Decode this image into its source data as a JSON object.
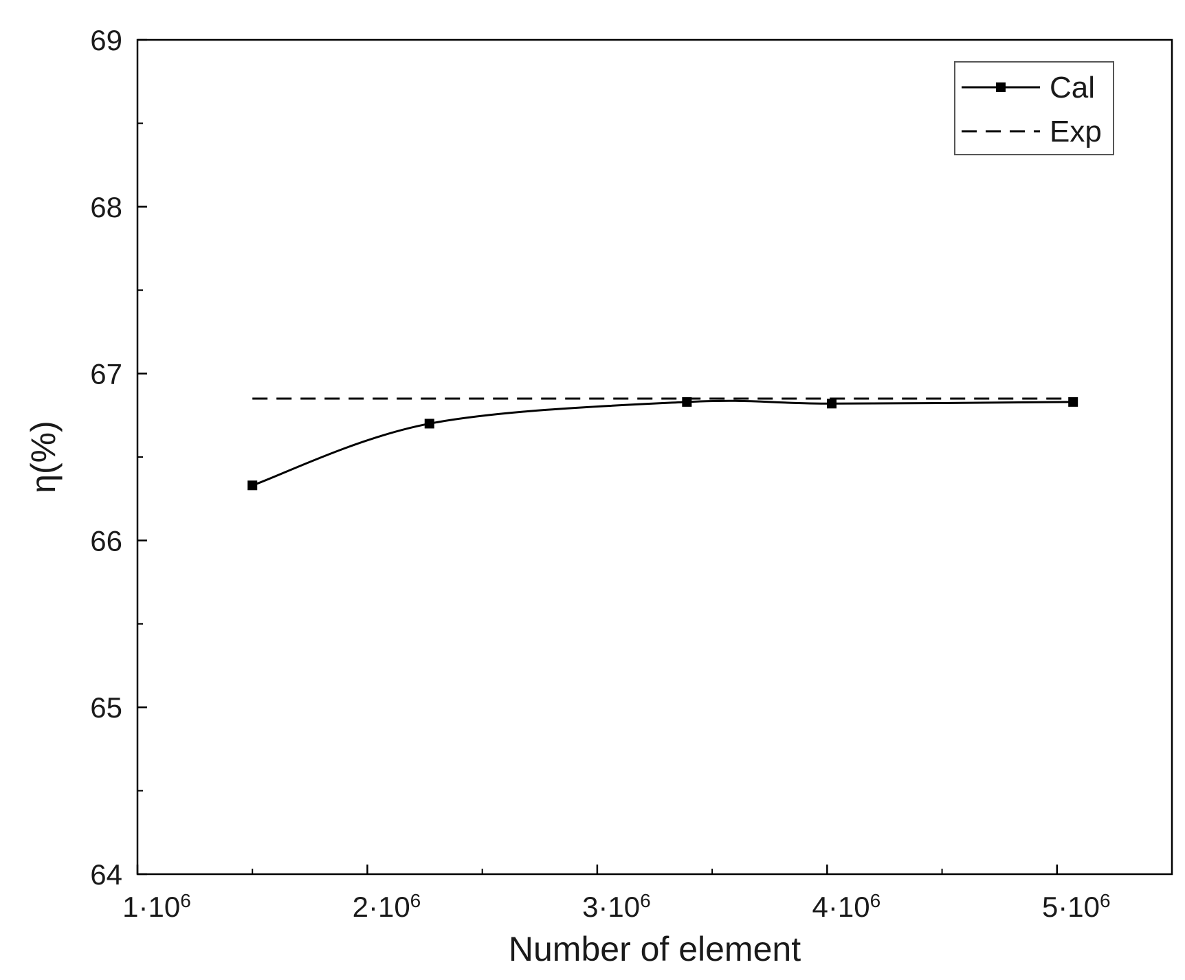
{
  "chart_data": {
    "type": "line",
    "title": "",
    "xlabel": "Number of element",
    "ylabel": "η(%)",
    "xlim": [
      1000000,
      5500000
    ],
    "ylim": [
      64,
      69
    ],
    "x_ticks": [
      {
        "value": 1000000,
        "base": "1·10",
        "exp": "6"
      },
      {
        "value": 2000000,
        "base": "2·10",
        "exp": "6"
      },
      {
        "value": 3000000,
        "base": "3·10",
        "exp": "6"
      },
      {
        "value": 4000000,
        "base": "4·10",
        "exp": "6"
      },
      {
        "value": 5000000,
        "base": "5·10",
        "exp": "6"
      }
    ],
    "y_ticks": [
      "64",
      "65",
      "66",
      "67",
      "68",
      "69"
    ],
    "grid": false,
    "legend_position": "top-right",
    "series": [
      {
        "name": "Cal",
        "style": "solid",
        "marker": "square",
        "color": "#000000",
        "x": [
          1500000,
          2270000,
          3390000,
          4020000,
          5070000
        ],
        "y": [
          66.33,
          66.7,
          66.83,
          66.82,
          66.83
        ]
      },
      {
        "name": "Exp",
        "style": "dashed",
        "color": "#000000",
        "x": [
          1500000,
          5070000
        ],
        "y": [
          66.85,
          66.85
        ]
      }
    ]
  }
}
